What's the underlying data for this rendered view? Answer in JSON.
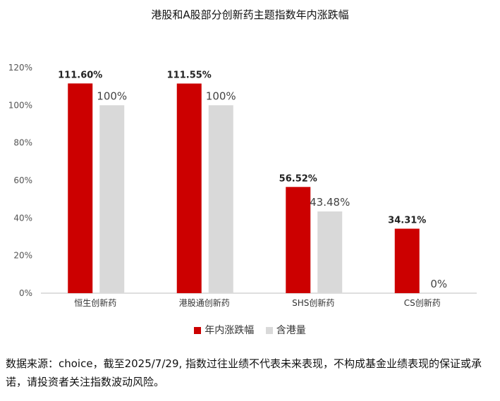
{
  "chart_data": {
    "type": "bar",
    "title": "港股和A股部分创新药主题指数年内涨跌幅",
    "categories": [
      "恒生创新药",
      "港股通创新药",
      "SHS创新药",
      "CS创新药"
    ],
    "series": [
      {
        "name": "年内涨跌幅",
        "color": "#cc0000",
        "values": [
          111.6,
          111.55,
          56.52,
          34.31
        ],
        "labels": [
          "111.60%",
          "111.55%",
          "56.52%",
          "34.31%"
        ]
      },
      {
        "name": "含港量",
        "color": "#d9d9d9",
        "values": [
          100,
          100,
          43.48,
          0
        ],
        "labels": [
          "100%",
          "100%",
          "43.48%",
          "0%"
        ]
      }
    ],
    "yticks": [
      "0%",
      "20%",
      "40%",
      "60%",
      "80%",
      "100%",
      "120%"
    ],
    "ylim": [
      0,
      120
    ],
    "grid": false,
    "legend_position": "bottom"
  },
  "footnote": "数据来源：choice，截至2025/7/29, 指数过往业绩不代表未来表现，不构成基金业绩表现的保证或承诺，请投资者关注指数波动风险。"
}
